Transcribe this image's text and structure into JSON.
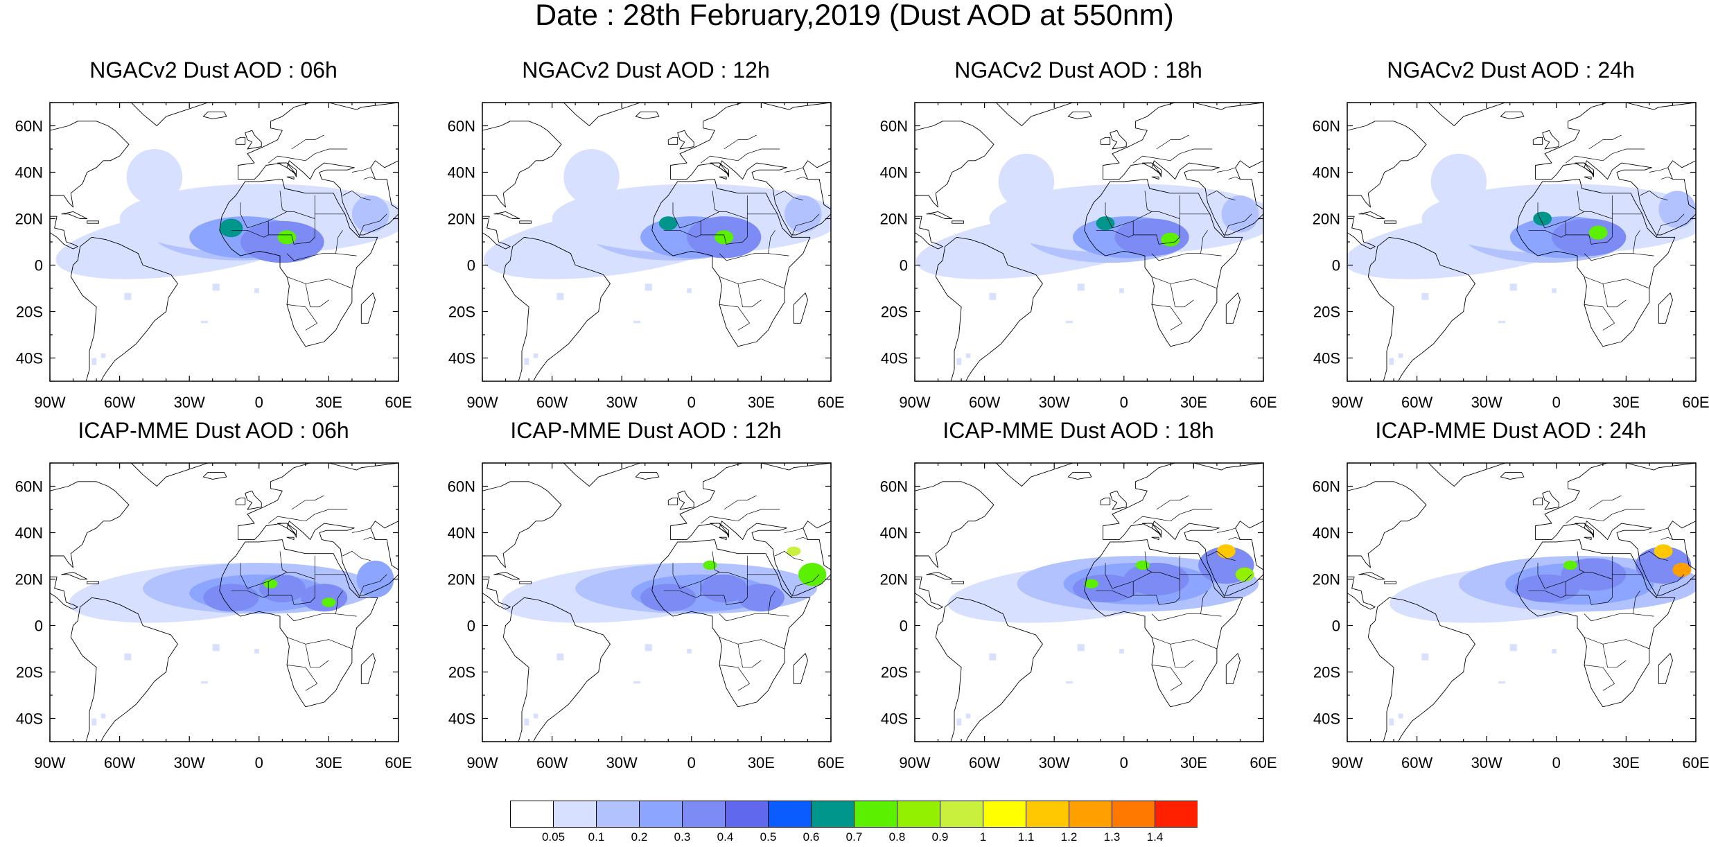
{
  "title": "Date : 28th February,2019 (Dust AOD at 550nm)",
  "panels": [
    {
      "title": "NGACv2 Dust AOD : 06h",
      "model": "NGACv2",
      "hour": "06h"
    },
    {
      "title": "NGACv2 Dust AOD : 12h",
      "model": "NGACv2",
      "hour": "12h"
    },
    {
      "title": "NGACv2 Dust AOD : 18h",
      "model": "NGACv2",
      "hour": "18h"
    },
    {
      "title": "NGACv2 Dust AOD : 24h",
      "model": "NGACv2",
      "hour": "24h"
    },
    {
      "title": "ICAP-MME Dust AOD : 06h",
      "model": "ICAP-MME",
      "hour": "06h"
    },
    {
      "title": "ICAP-MME Dust AOD : 12h",
      "model": "ICAP-MME",
      "hour": "12h"
    },
    {
      "title": "ICAP-MME Dust AOD : 18h",
      "model": "ICAP-MME",
      "hour": "18h"
    },
    {
      "title": "ICAP-MME Dust AOD : 24h",
      "model": "ICAP-MME",
      "hour": "24h"
    }
  ],
  "map": {
    "lon_range": [
      -90,
      60
    ],
    "lat_range": [
      -50,
      70
    ],
    "x_ticks": [
      {
        "value": -90,
        "label": "90W"
      },
      {
        "value": -60,
        "label": "60W"
      },
      {
        "value": -30,
        "label": "30W"
      },
      {
        "value": 0,
        "label": "0"
      },
      {
        "value": 30,
        "label": "30E"
      },
      {
        "value": 60,
        "label": "60E"
      }
    ],
    "y_ticks": [
      {
        "value": 60,
        "label": "60N"
      },
      {
        "value": 40,
        "label": "40N"
      },
      {
        "value": 20,
        "label": "20N"
      },
      {
        "value": 0,
        "label": "0"
      },
      {
        "value": -20,
        "label": "20S"
      },
      {
        "value": -40,
        "label": "40S"
      }
    ],
    "coastline_color": "#000000"
  },
  "colorbar": {
    "colors": [
      "#ffffff",
      "#d8e0ff",
      "#b2c2ff",
      "#8ca6ff",
      "#7c8cf4",
      "#6068ee",
      "#0a5cff",
      "#00968c",
      "#5af000",
      "#92f000",
      "#c8f03c",
      "#ffff00",
      "#ffc800",
      "#ffa000",
      "#ff7800",
      "#ff2000"
    ],
    "labels": [
      "0.05",
      "0.1",
      "0.2",
      "0.3",
      "0.4",
      "0.5",
      "0.6",
      "0.7",
      "0.8",
      "0.9",
      "1",
      "1.1",
      "1.2",
      "1.3",
      "1.4"
    ]
  }
}
